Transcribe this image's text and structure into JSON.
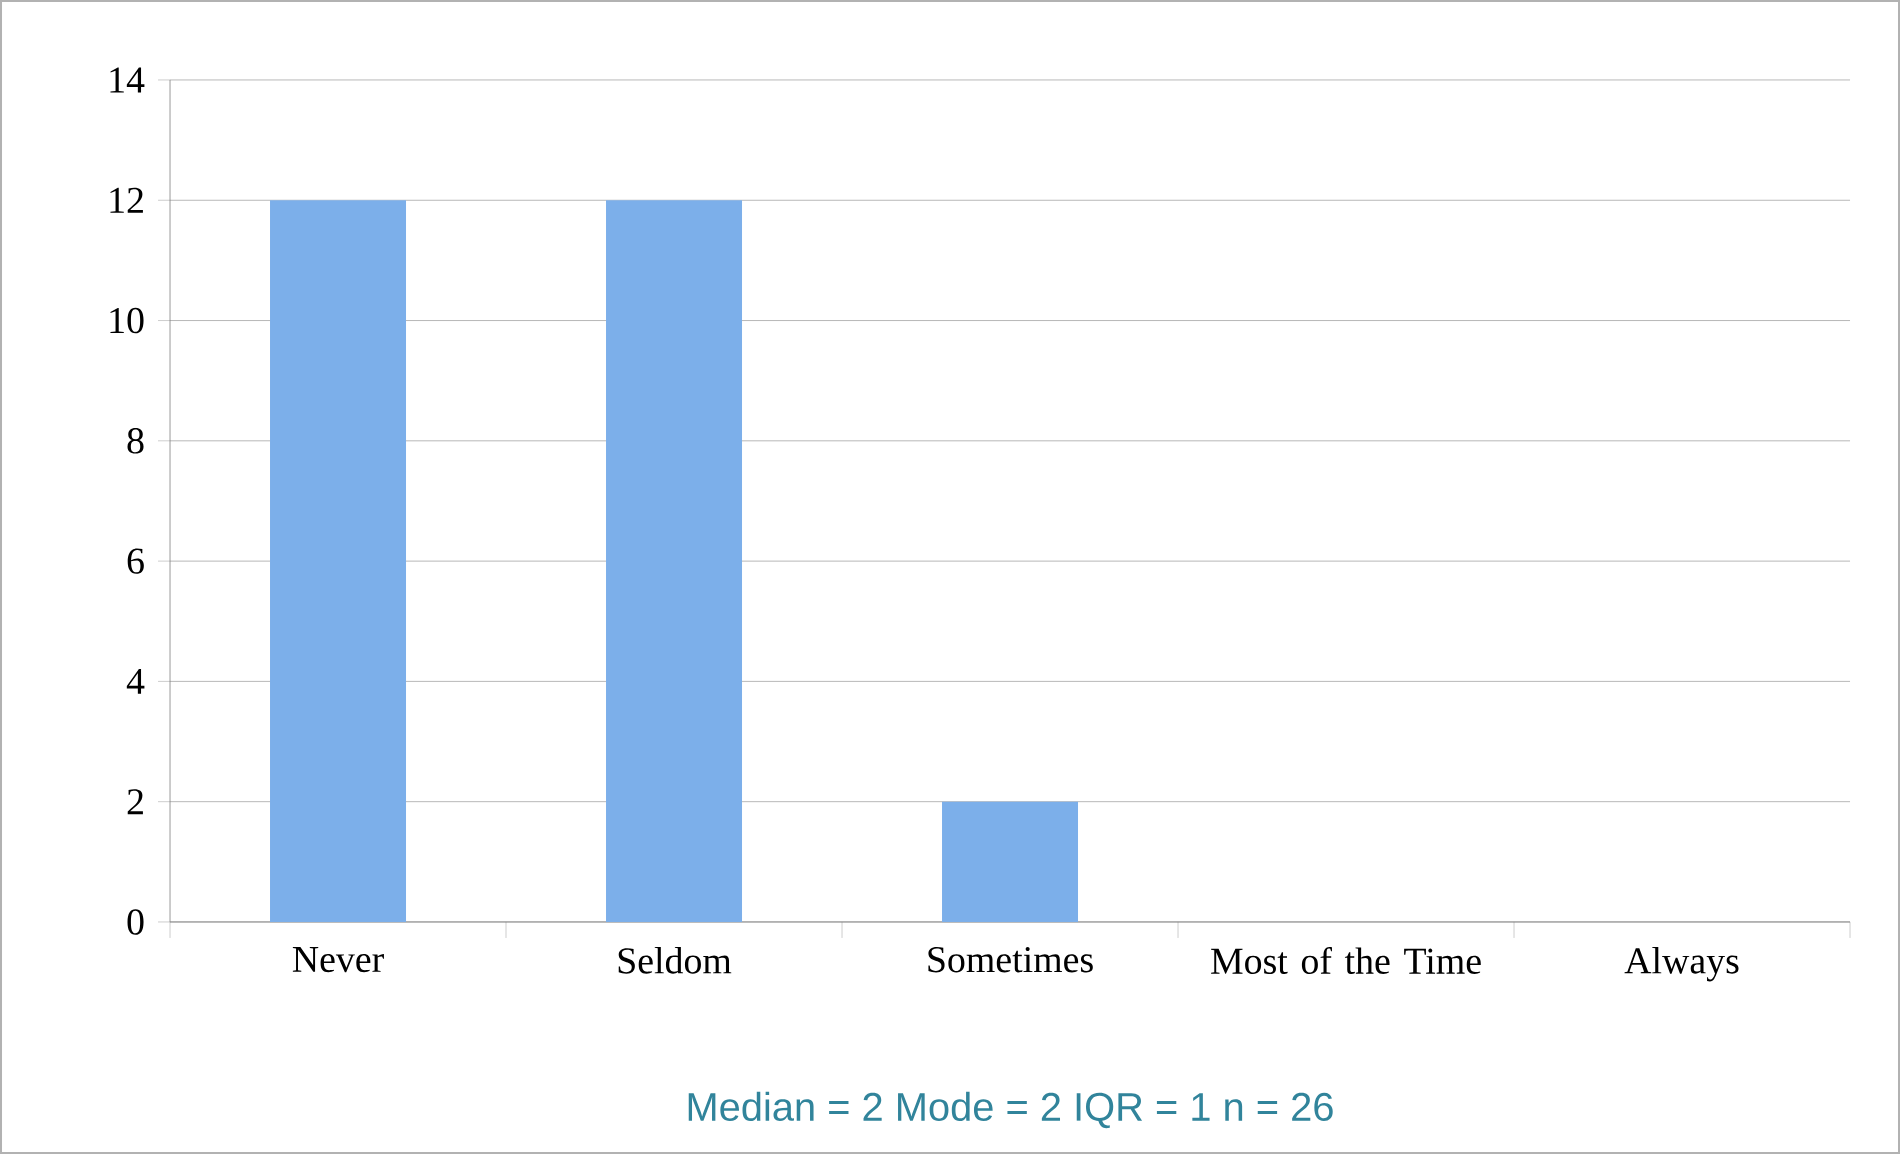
{
  "chart_data": {
    "type": "bar",
    "categories": [
      "Never",
      "Seldom",
      "Sometimes",
      "Most of the Time",
      "Always"
    ],
    "values": [
      12,
      12,
      2,
      0,
      0
    ],
    "color": "#7cafea",
    "ylim": [
      0,
      14
    ],
    "yticks": [
      0,
      2,
      4,
      6,
      8,
      10,
      12,
      14
    ],
    "grid": "y",
    "annotations": [
      "Median = 2  Mode = 2  IQR = 1  n = 26"
    ]
  }
}
